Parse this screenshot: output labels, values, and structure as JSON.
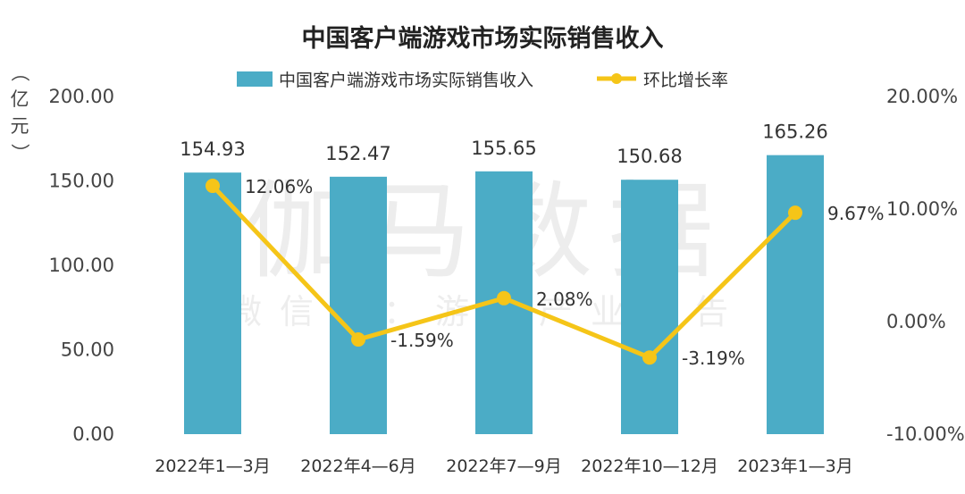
{
  "chart_data": {
    "type": "bar+line",
    "title": "中国客户端游戏市场实际销售收入",
    "categories": [
      "2022年1—3月",
      "2022年4—6月",
      "2022年7—9月",
      "2022年10—12月",
      "2023年1—3月"
    ],
    "series": [
      {
        "name": "中国客户端游戏市场实际销售收入",
        "type": "bar",
        "axis": "left",
        "values": [
          154.93,
          152.47,
          155.65,
          150.68,
          165.26
        ],
        "labels": [
          "154.93",
          "152.47",
          "155.65",
          "150.68",
          "165.26"
        ],
        "color": "#4BACC6"
      },
      {
        "name": "环比增长率",
        "type": "line",
        "axis": "right",
        "values": [
          12.06,
          -1.59,
          2.08,
          -3.19,
          9.67
        ],
        "labels": [
          "12.06%",
          "-1.59%",
          "2.08%",
          "-3.19%",
          "9.67%"
        ],
        "color": "#F5C518"
      }
    ],
    "y_left": {
      "label": "（亿元）",
      "ylim": [
        0,
        200
      ],
      "ticks": [
        0,
        50,
        100,
        150,
        200
      ],
      "tick_labels": [
        "0.00",
        "50.00",
        "100.00",
        "150.00",
        "200.00"
      ]
    },
    "y_right": {
      "ylim": [
        -10,
        20
      ],
      "ticks": [
        -10,
        0,
        10,
        20
      ],
      "tick_labels": [
        "-10.00%",
        "0.00%",
        "10.00%",
        "20.00%"
      ]
    },
    "legend_position": "top",
    "grid": false
  },
  "watermark": {
    "line1": "伽马数据",
    "line2": "微信号：游戏产业报告"
  }
}
